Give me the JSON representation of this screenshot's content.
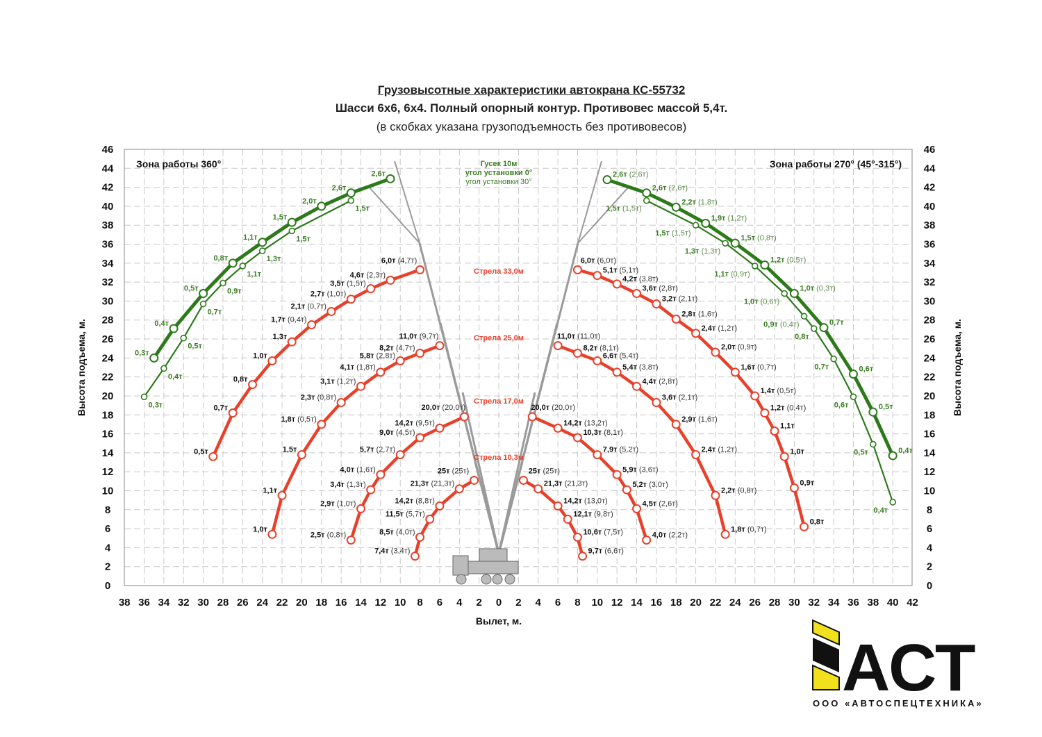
{
  "title": {
    "line1": "Грузовысотные характеристики автокрана КС-55732",
    "line2": "Шасси 6х6, 6х4. Полный опорный контур. Противовес массой 5,4т.",
    "line3": "(в скобках указана грузоподъемность без противовесов)"
  },
  "logo": {
    "text": "АСТ",
    "company": "ООО «АВТОСПЕЦТЕХНИКА»",
    "yellow": "#f2e01c",
    "black": "#111111"
  },
  "chart_data": {
    "type": "line",
    "xlabel": "Вылет, м.",
    "ylabel": "Высота подъема, м.",
    "x_ticks_left": [
      38,
      36,
      34,
      32,
      30,
      28,
      26,
      24,
      22,
      20,
      18,
      16,
      14,
      12,
      10,
      8,
      6,
      4,
      2,
      0
    ],
    "x_ticks_right": [
      2,
      4,
      6,
      8,
      10,
      12,
      14,
      16,
      18,
      20,
      22,
      24,
      26,
      28,
      30,
      32,
      34,
      36,
      38,
      40,
      42
    ],
    "y_ticks": [
      0,
      2,
      4,
      6,
      8,
      10,
      12,
      14,
      16,
      18,
      20,
      22,
      24,
      26,
      28,
      30,
      32,
      34,
      36,
      38,
      40,
      42,
      44,
      46
    ],
    "xlim_left": [
      0,
      38
    ],
    "xlim_right": [
      0,
      42
    ],
    "ylim": [
      0,
      46
    ],
    "grid": true,
    "zones": {
      "left": "Зона работы 360°",
      "right": "Зона работы 270° (45°-315°)"
    },
    "center_labels": {
      "jib": "Гусек 10м",
      "jib_angle0": "угол установки 0°",
      "jib_angle30": "угол установки 30°",
      "boom33": "Стрела 33,0м",
      "boom25": "Стрела 25,0м",
      "boom17": "Стрела 17,0м",
      "boom10": "Стрела 10,3м"
    },
    "colors": {
      "boom": "#e8402a",
      "jib": "#2d7a1b",
      "jib_label": "#3a7d22"
    },
    "series": [
      {
        "name": "Стрела 33,0м",
        "side": "left",
        "kind": "boom",
        "points": [
          {
            "x": 29,
            "y": 13.6,
            "load": "0,5т"
          },
          {
            "x": 27,
            "y": 18.2,
            "load": "0,7т"
          },
          {
            "x": 25,
            "y": 21.2,
            "load": "0,8т"
          },
          {
            "x": 23,
            "y": 23.7,
            "load": "1,0т"
          },
          {
            "x": 21,
            "y": 25.7,
            "load": "1,3т"
          },
          {
            "x": 19,
            "y": 27.5,
            "load": "1,7т",
            "reserve": "(0,4т)"
          },
          {
            "x": 17,
            "y": 28.9,
            "load": "2,1т",
            "reserve": "(0,7т)"
          },
          {
            "x": 15,
            "y": 30.2,
            "load": "2,7т",
            "reserve": "(1,0т)"
          },
          {
            "x": 13,
            "y": 31.3,
            "load": "3,5т",
            "reserve": "(1,5т)"
          },
          {
            "x": 11,
            "y": 32.2,
            "load": "4,6т",
            "reserve": "(2,3т)"
          },
          {
            "x": 8,
            "y": 33.3,
            "load": "6,0т",
            "reserve": "(4,7т)"
          }
        ]
      },
      {
        "name": "Стрела 25,0м",
        "side": "left",
        "kind": "boom",
        "points": [
          {
            "x": 23,
            "y": 5.4,
            "load": "1,0т"
          },
          {
            "x": 22,
            "y": 9.5,
            "load": "1,1т"
          },
          {
            "x": 20,
            "y": 13.8,
            "load": "1,5т"
          },
          {
            "x": 18,
            "y": 17.0,
            "load": "1,8т",
            "reserve": "(0,5т)"
          },
          {
            "x": 16,
            "y": 19.3,
            "load": "2,3т",
            "reserve": "(0,8т)"
          },
          {
            "x": 14,
            "y": 21.0,
            "load": "3,1т",
            "reserve": "(1,2т)"
          },
          {
            "x": 12,
            "y": 22.5,
            "load": "4,1т",
            "reserve": "(1,8т)"
          },
          {
            "x": 10,
            "y": 23.7,
            "load": "5,8т",
            "reserve": "(2,8т)"
          },
          {
            "x": 8,
            "y": 24.5,
            "load": "8,2т",
            "reserve": "(4,7т)"
          },
          {
            "x": 6,
            "y": 25.3,
            "load": "11,0т",
            "reserve": "(9,7т)"
          }
        ]
      },
      {
        "name": "Стрела 17,0м",
        "side": "left",
        "kind": "boom",
        "points": [
          {
            "x": 15,
            "y": 4.8,
            "load": "2,5т",
            "reserve": "(0,8т)"
          },
          {
            "x": 14,
            "y": 8.1,
            "load": "2,9т",
            "reserve": "(1,0т)"
          },
          {
            "x": 13,
            "y": 10.1,
            "load": "3,4т",
            "reserve": "(1,3т)"
          },
          {
            "x": 12,
            "y": 11.7,
            "load": "4,0т",
            "reserve": "(1,6т)"
          },
          {
            "x": 10,
            "y": 13.8,
            "load": "5,7т",
            "reserve": "(2,7т)"
          },
          {
            "x": 8,
            "y": 15.6,
            "load": "9,0т",
            "reserve": "(4,5т)"
          },
          {
            "x": 6,
            "y": 16.6,
            "load": "14,2т",
            "reserve": "(9,5т)"
          },
          {
            "x": 3.5,
            "y": 17.8,
            "load": "20,0т",
            "reserve": "(20,0т)"
          }
        ]
      },
      {
        "name": "Стрела 10,3м",
        "side": "left",
        "kind": "boom",
        "points": [
          {
            "x": 8.5,
            "y": 3.1,
            "load": "7,4т",
            "reserve": "(3,4т)"
          },
          {
            "x": 8,
            "y": 5.1,
            "load": "8,5т",
            "reserve": "(4,0т)"
          },
          {
            "x": 7,
            "y": 7.0,
            "load": "11,5т",
            "reserve": "(5,7т)"
          },
          {
            "x": 6,
            "y": 8.4,
            "load": "14,2т",
            "reserve": "(8,8т)"
          },
          {
            "x": 4,
            "y": 10.2,
            "load": "21,3т",
            "reserve": "(21,3т)"
          },
          {
            "x": 2.5,
            "y": 11.1,
            "load": "25т",
            "reserve": "(25т)"
          }
        ]
      },
      {
        "name": "угол установки 0°",
        "side": "left",
        "kind": "jib0",
        "points": [
          {
            "x": 35,
            "y": 24.0,
            "load": "0,3т"
          },
          {
            "x": 33,
            "y": 27.1,
            "load": "0,4т"
          },
          {
            "x": 30,
            "y": 30.8,
            "load": "0,5т"
          },
          {
            "x": 27,
            "y": 34.0,
            "load": "0,8т"
          },
          {
            "x": 24,
            "y": 36.2,
            "load": "1,1т"
          },
          {
            "x": 21,
            "y": 38.3,
            "load": "1,5т"
          },
          {
            "x": 18,
            "y": 40.0,
            "load": "2,0т"
          },
          {
            "x": 15,
            "y": 41.4,
            "load": "2,6т"
          },
          {
            "x": 11,
            "y": 42.9,
            "load": "2,6т"
          }
        ]
      },
      {
        "name": "угол установки 30°",
        "side": "left",
        "kind": "jib30",
        "points": [
          {
            "x": 36,
            "y": 19.9,
            "load": "0,3т"
          },
          {
            "x": 34,
            "y": 22.9,
            "load": "0,4т"
          },
          {
            "x": 32,
            "y": 26.1,
            "load": "0,5т"
          },
          {
            "x": 30,
            "y": 29.7,
            "load": "0,7т"
          },
          {
            "x": 28,
            "y": 31.9,
            "load": "0,9т"
          },
          {
            "x": 26,
            "y": 33.7,
            "load": "1,1т"
          },
          {
            "x": 24,
            "y": 35.3,
            "load": "1,3т"
          },
          {
            "x": 21,
            "y": 37.4,
            "load": "1,5т"
          },
          {
            "x": 15,
            "y": 40.6,
            "load": "1,5т"
          }
        ]
      },
      {
        "name": "Стрела 33,0м",
        "side": "right",
        "kind": "boom",
        "points": [
          {
            "x": 8,
            "y": 33.3,
            "load": "6,0т",
            "reserve": "(6,0т)"
          },
          {
            "x": 10,
            "y": 32.7,
            "load": "5,1т",
            "reserve": "(5,1т)"
          },
          {
            "x": 12,
            "y": 31.8,
            "load": "4,2т",
            "reserve": "(3,8т)"
          },
          {
            "x": 14,
            "y": 30.8,
            "load": "3,6т",
            "reserve": "(2,8т)"
          },
          {
            "x": 16,
            "y": 29.7,
            "load": "3,2т",
            "reserve": "(2,1т)"
          },
          {
            "x": 18,
            "y": 28.1,
            "load": "2,8т",
            "reserve": "(1,6т)"
          },
          {
            "x": 20,
            "y": 26.6,
            "load": "2,4т",
            "reserve": "(1,2т)"
          },
          {
            "x": 22,
            "y": 24.6,
            "load": "2,0т",
            "reserve": "(0,9т)"
          },
          {
            "x": 24,
            "y": 22.5,
            "load": "1,6т",
            "reserve": "(0,7т)"
          },
          {
            "x": 26,
            "y": 20.0,
            "load": "1,4т",
            "reserve": "(0,5т)"
          },
          {
            "x": 27,
            "y": 18.2,
            "load": "1,2т",
            "reserve": "(0,4т)"
          },
          {
            "x": 28,
            "y": 16.3,
            "load": "1,1т"
          },
          {
            "x": 29,
            "y": 13.6,
            "load": "1,0т"
          },
          {
            "x": 30,
            "y": 10.3,
            "load": "0,9т"
          },
          {
            "x": 31,
            "y": 6.2,
            "load": "0,8т"
          }
        ]
      },
      {
        "name": "Стрела 25,0м",
        "side": "right",
        "kind": "boom",
        "points": [
          {
            "x": 6,
            "y": 25.3,
            "load": "11,0т",
            "reserve": "(11,0т)"
          },
          {
            "x": 8,
            "y": 24.5,
            "load": "8,2т",
            "reserve": "(8,1т)"
          },
          {
            "x": 10,
            "y": 23.7,
            "load": "6,6т",
            "reserve": "(5,4т)"
          },
          {
            "x": 12,
            "y": 22.5,
            "load": "5,4т",
            "reserve": "(3,8т)"
          },
          {
            "x": 14,
            "y": 21.0,
            "load": "4,4т",
            "reserve": "(2,8т)"
          },
          {
            "x": 16,
            "y": 19.3,
            "load": "3,6т",
            "reserve": "(2,1т)"
          },
          {
            "x": 18,
            "y": 17.0,
            "load": "2,9т",
            "reserve": "(1,6т)"
          },
          {
            "x": 20,
            "y": 13.8,
            "load": "2,4т",
            "reserve": "(1,2т)"
          },
          {
            "x": 22,
            "y": 9.5,
            "load": "2,2т",
            "reserve": "(0,8т)"
          },
          {
            "x": 23,
            "y": 5.4,
            "load": "1,8т",
            "reserve": "(0,7т)"
          }
        ]
      },
      {
        "name": "Стрела 17,0м",
        "side": "right",
        "kind": "boom",
        "points": [
          {
            "x": 3.4,
            "y": 17.8,
            "load": "20,0т",
            "reserve": "(20,0т)"
          },
          {
            "x": 6,
            "y": 16.6,
            "load": "14,2т",
            "reserve": "(13,2т)"
          },
          {
            "x": 8,
            "y": 15.6,
            "load": "10,3т",
            "reserve": "(8,1т)"
          },
          {
            "x": 10,
            "y": 13.8,
            "load": "7,9т",
            "reserve": "(5,2т)"
          },
          {
            "x": 12,
            "y": 11.7,
            "load": "5,9т",
            "reserve": "(3,6т)"
          },
          {
            "x": 13,
            "y": 10.1,
            "load": "5,2т",
            "reserve": "(3,0т)"
          },
          {
            "x": 14,
            "y": 8.1,
            "load": "4,5т",
            "reserve": "(2,6т)"
          },
          {
            "x": 15,
            "y": 4.8,
            "load": "4,0т",
            "reserve": "(2,2т)"
          }
        ]
      },
      {
        "name": "Стрела 10,3м",
        "side": "right",
        "kind": "boom",
        "points": [
          {
            "x": 2.5,
            "y": 11.1,
            "load": "25т",
            "reserve": "(25т)"
          },
          {
            "x": 4,
            "y": 10.2,
            "load": "21,3т",
            "reserve": "(21,3т)"
          },
          {
            "x": 6,
            "y": 8.4,
            "load": "14,2т",
            "reserve": "(13,0т)"
          },
          {
            "x": 7,
            "y": 7.0,
            "load": "12,1т",
            "reserve": "(9,8т)"
          },
          {
            "x": 8,
            "y": 5.1,
            "load": "10,6т",
            "reserve": "(7,5т)"
          },
          {
            "x": 8.5,
            "y": 3.1,
            "load": "9,7т",
            "reserve": "(6,6т)"
          }
        ]
      },
      {
        "name": "угол установки 0°",
        "side": "right",
        "kind": "jib0",
        "points": [
          {
            "x": 11,
            "y": 42.8,
            "load": "2,6т",
            "reserve": "(2,6т)"
          },
          {
            "x": 15,
            "y": 41.4,
            "load": "2,6т",
            "reserve": "(2,6т)"
          },
          {
            "x": 18,
            "y": 39.9,
            "load": "2,2т",
            "reserve": "(1,8т)"
          },
          {
            "x": 21,
            "y": 38.2,
            "load": "1,9т",
            "reserve": "(1,2т)"
          },
          {
            "x": 24,
            "y": 36.1,
            "load": "1,5т",
            "reserve": "(0,8т)"
          },
          {
            "x": 27,
            "y": 33.8,
            "load": "1,2т",
            "reserve": "(0,5т)"
          },
          {
            "x": 30,
            "y": 30.8,
            "load": "1,0т",
            "reserve": "(0,3т)"
          },
          {
            "x": 33,
            "y": 27.2,
            "load": "0,7т"
          },
          {
            "x": 36,
            "y": 22.3,
            "load": "0,6т"
          },
          {
            "x": 38,
            "y": 18.3,
            "load": "0,5т"
          },
          {
            "x": 40,
            "y": 13.7,
            "load": "0,4т"
          }
        ]
      },
      {
        "name": "угол установки 30°",
        "side": "right",
        "kind": "jib30",
        "points": [
          {
            "x": 15,
            "y": 40.6,
            "load": "1,5т",
            "reserve": "(1,5т)"
          },
          {
            "x": 20,
            "y": 38.0,
            "load": "1,5т",
            "reserve": "(1,5т)"
          },
          {
            "x": 23,
            "y": 36.1,
            "load": "1,3т",
            "reserve": "(1,3т)"
          },
          {
            "x": 26,
            "y": 33.7,
            "load": "1,1т",
            "reserve": "(0,9т)"
          },
          {
            "x": 29,
            "y": 30.8,
            "load": "1,0т",
            "reserve": "(0,6т)"
          },
          {
            "x": 31,
            "y": 28.4,
            "load": "0,9т",
            "reserve": "(0,4т)"
          },
          {
            "x": 32,
            "y": 27.1,
            "load": "0,8т"
          },
          {
            "x": 34,
            "y": 23.9,
            "load": "0,7т"
          },
          {
            "x": 36,
            "y": 19.9,
            "load": "0,6т"
          },
          {
            "x": 38,
            "y": 14.9,
            "load": "0,5т"
          },
          {
            "x": 40,
            "y": 8.8,
            "load": "0,4т"
          }
        ]
      }
    ]
  }
}
